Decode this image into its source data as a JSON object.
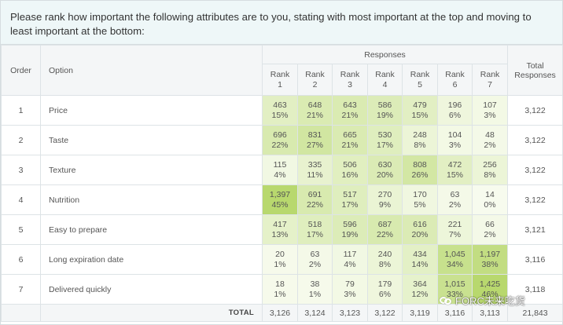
{
  "question": "Please rank how important the following attributes are to you, stating with most important at the top and moving to least important at the bottom:",
  "headers": {
    "order": "Order",
    "option": "Option",
    "responses": "Responses",
    "total_l1": "Total",
    "total_l2": "Responses",
    "rank_word": "Rank",
    "ranks": [
      "1",
      "2",
      "3",
      "4",
      "5",
      "6",
      "7"
    ]
  },
  "rows": [
    {
      "order": "1",
      "option": "Price",
      "cells": [
        {
          "n": "463",
          "p": "15%",
          "pct": 15
        },
        {
          "n": "648",
          "p": "21%",
          "pct": 21
        },
        {
          "n": "643",
          "p": "21%",
          "pct": 21
        },
        {
          "n": "586",
          "p": "19%",
          "pct": 19
        },
        {
          "n": "479",
          "p": "15%",
          "pct": 15
        },
        {
          "n": "196",
          "p": "6%",
          "pct": 6
        },
        {
          "n": "107",
          "p": "3%",
          "pct": 3
        }
      ],
      "total": "3,122"
    },
    {
      "order": "2",
      "option": "Taste",
      "cells": [
        {
          "n": "696",
          "p": "22%",
          "pct": 22
        },
        {
          "n": "831",
          "p": "27%",
          "pct": 27
        },
        {
          "n": "665",
          "p": "21%",
          "pct": 21
        },
        {
          "n": "530",
          "p": "17%",
          "pct": 17
        },
        {
          "n": "248",
          "p": "8%",
          "pct": 8
        },
        {
          "n": "104",
          "p": "3%",
          "pct": 3
        },
        {
          "n": "48",
          "p": "2%",
          "pct": 2
        }
      ],
      "total": "3,122"
    },
    {
      "order": "3",
      "option": "Texture",
      "cells": [
        {
          "n": "115",
          "p": "4%",
          "pct": 4
        },
        {
          "n": "335",
          "p": "11%",
          "pct": 11
        },
        {
          "n": "506",
          "p": "16%",
          "pct": 16
        },
        {
          "n": "630",
          "p": "20%",
          "pct": 20
        },
        {
          "n": "808",
          "p": "26%",
          "pct": 26
        },
        {
          "n": "472",
          "p": "15%",
          "pct": 15
        },
        {
          "n": "256",
          "p": "8%",
          "pct": 8
        }
      ],
      "total": "3,122"
    },
    {
      "order": "4",
      "option": "Nutrition",
      "cells": [
        {
          "n": "1,397",
          "p": "45%",
          "pct": 45
        },
        {
          "n": "691",
          "p": "22%",
          "pct": 22
        },
        {
          "n": "517",
          "p": "17%",
          "pct": 17
        },
        {
          "n": "270",
          "p": "9%",
          "pct": 9
        },
        {
          "n": "170",
          "p": "5%",
          "pct": 5
        },
        {
          "n": "63",
          "p": "2%",
          "pct": 2
        },
        {
          "n": "14",
          "p": "0%",
          "pct": 0
        }
      ],
      "total": "3,122"
    },
    {
      "order": "5",
      "option": "Easy to prepare",
      "cells": [
        {
          "n": "417",
          "p": "13%",
          "pct": 13
        },
        {
          "n": "518",
          "p": "17%",
          "pct": 17
        },
        {
          "n": "596",
          "p": "19%",
          "pct": 19
        },
        {
          "n": "687",
          "p": "22%",
          "pct": 22
        },
        {
          "n": "616",
          "p": "20%",
          "pct": 20
        },
        {
          "n": "221",
          "p": "7%",
          "pct": 7
        },
        {
          "n": "66",
          "p": "2%",
          "pct": 2
        }
      ],
      "total": "3,121"
    },
    {
      "order": "6",
      "option": "Long expiration date",
      "cells": [
        {
          "n": "20",
          "p": "1%",
          "pct": 1
        },
        {
          "n": "63",
          "p": "2%",
          "pct": 2
        },
        {
          "n": "117",
          "p": "4%",
          "pct": 4
        },
        {
          "n": "240",
          "p": "8%",
          "pct": 8
        },
        {
          "n": "434",
          "p": "14%",
          "pct": 14
        },
        {
          "n": "1,045",
          "p": "34%",
          "pct": 34
        },
        {
          "n": "1,197",
          "p": "38%",
          "pct": 38
        }
      ],
      "total": "3,116"
    },
    {
      "order": "7",
      "option": "Delivered quickly",
      "cells": [
        {
          "n": "18",
          "p": "1%",
          "pct": 1
        },
        {
          "n": "38",
          "p": "1%",
          "pct": 1
        },
        {
          "n": "79",
          "p": "3%",
          "pct": 3
        },
        {
          "n": "179",
          "p": "6%",
          "pct": 6
        },
        {
          "n": "364",
          "p": "12%",
          "pct": 12
        },
        {
          "n": "1,015",
          "p": "33%",
          "pct": 33
        },
        {
          "n": "1,425",
          "p": "46%",
          "pct": 46
        }
      ],
      "total": "3,118"
    }
  ],
  "totals": {
    "label": "TOTAL",
    "values": [
      "3,126",
      "3,124",
      "3,123",
      "3,122",
      "3,119",
      "3,116",
      "3,113"
    ],
    "grand": "21,843"
  },
  "watermark": {
    "icon": "wechat-icon",
    "text": "FORC未来吃货"
  },
  "colors": {
    "heat_low": "#f7fbee",
    "heat_high": "#b8d86e",
    "question_bg": "#eef7f8"
  }
}
